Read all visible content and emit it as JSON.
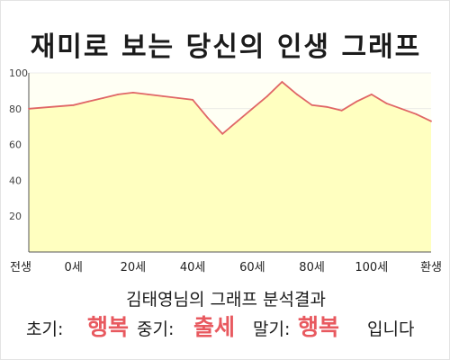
{
  "chart_data": {
    "type": "area",
    "title": "재미로 보는 당신의 인생 그래프",
    "x": [
      "전생",
      "0세",
      "20세",
      "40세",
      "60세",
      "80세",
      "100세",
      "환생"
    ],
    "series": [
      {
        "x": [
          -15,
          0,
          5,
          10,
          15,
          20,
          25,
          30,
          35,
          40,
          45,
          50,
          55,
          60,
          65,
          70,
          75,
          80,
          85,
          90,
          95,
          100,
          105,
          110,
          115,
          120
        ],
        "values": [
          80,
          82,
          84,
          86,
          88,
          89,
          88,
          87,
          86,
          85,
          75,
          66,
          73,
          80,
          87,
          95,
          88,
          82,
          81,
          79,
          84,
          88,
          83,
          80,
          77,
          73
        ]
      }
    ],
    "ylim": [
      0,
      100
    ],
    "yticks": [
      20,
      40,
      60,
      80,
      100
    ],
    "xlim": [
      -15,
      120
    ],
    "grid": true,
    "colors": {
      "fill": "#ffffc0",
      "line": "#e06666",
      "background": "#fffff4",
      "grid": "#dddddd"
    }
  },
  "summary": {
    "title": "김태영님의 그래프 분석결과",
    "early_label": "초기:",
    "early_value": "행복",
    "middle_label": "중기:",
    "middle_value": "출세",
    "late_label": "말기:",
    "late_value": "행복",
    "ending": "입니다",
    "highlight_color": "#e8595f"
  }
}
